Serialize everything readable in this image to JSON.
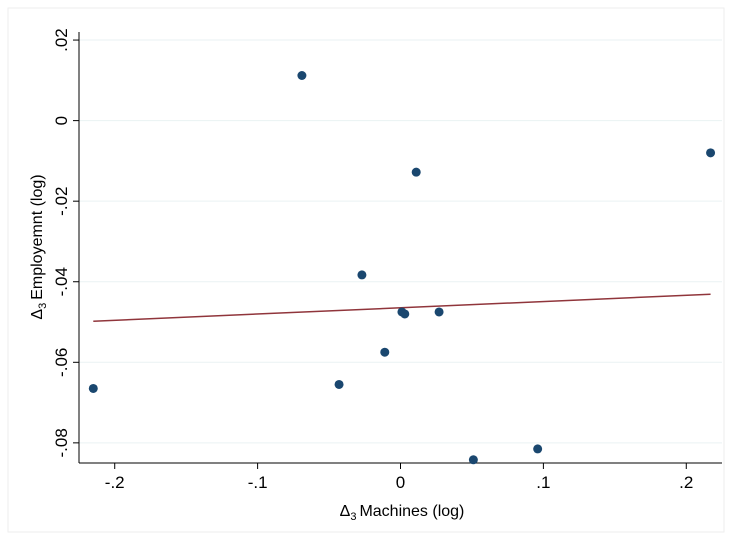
{
  "chart_data": {
    "type": "scatter",
    "title": "",
    "xlabel": "Machines (log)",
    "xlabel_prefix": "Δ",
    "xlabel_sub": "3",
    "ylabel": "Employemnt (log)",
    "ylabel_prefix": "Δ",
    "ylabel_sub": "3",
    "xlim": [
      -0.225,
      0.225
    ],
    "ylim": [
      -0.085,
      0.022
    ],
    "x_ticks": [
      -0.2,
      -0.1,
      0,
      0.1,
      0.2
    ],
    "x_tick_labels": [
      "-.2",
      "-.1",
      "0",
      ".1",
      ".2"
    ],
    "y_ticks": [
      0.02,
      0,
      -0.02,
      -0.04,
      -0.06,
      -0.08
    ],
    "y_tick_labels": [
      ".02",
      "0",
      "-.02",
      "-.04",
      "-.06",
      "-.08"
    ],
    "grid": "horizontal",
    "series": [
      {
        "type": "scatter",
        "color": "#1a476f",
        "points": [
          {
            "x": -0.215,
            "y": -0.0665
          },
          {
            "x": -0.069,
            "y": 0.0112
          },
          {
            "x": -0.043,
            "y": -0.0655
          },
          {
            "x": -0.027,
            "y": -0.0383
          },
          {
            "x": -0.011,
            "y": -0.0575
          },
          {
            "x": 0.001,
            "y": -0.0475
          },
          {
            "x": 0.003,
            "y": -0.048
          },
          {
            "x": 0.011,
            "y": -0.0128
          },
          {
            "x": 0.027,
            "y": -0.0475
          },
          {
            "x": 0.051,
            "y": -0.0842
          },
          {
            "x": 0.096,
            "y": -0.0815
          },
          {
            "x": 0.217,
            "y": -0.008
          }
        ]
      },
      {
        "type": "line",
        "color": "#90353b",
        "points": [
          {
            "x": -0.215,
            "y": -0.0498
          },
          {
            "x": 0.217,
            "y": -0.0431
          }
        ]
      }
    ]
  }
}
